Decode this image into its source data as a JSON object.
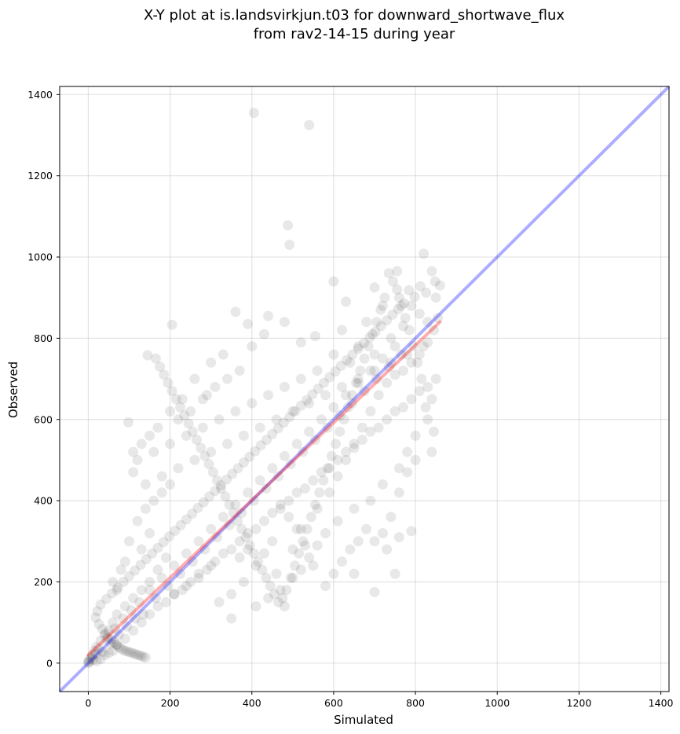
{
  "chart_data": {
    "type": "scatter",
    "title_line1": "X-Y plot at is.landsvirkjun.t03 for downward_shortwave_flux",
    "title_line2": "from rav2-14-15 during year",
    "xlabel": "Simulated",
    "ylabel": "Observed",
    "xlim": [
      -70,
      1420
    ],
    "ylim": [
      -70,
      1420
    ],
    "xticks": [
      0,
      200,
      400,
      600,
      800,
      1000,
      1200,
      1400
    ],
    "yticks": [
      0,
      200,
      400,
      600,
      800,
      1000,
      1200,
      1400
    ],
    "grid": true,
    "colors": {
      "points": "#000000",
      "one_to_one": "#0000ff",
      "fit": "#ff0000"
    },
    "one_to_one_line": {
      "x": [
        -70,
        1420
      ],
      "y": [
        -70,
        1420
      ]
    },
    "fit_line": {
      "x": [
        0,
        860
      ],
      "y": [
        20,
        840
      ]
    },
    "points": [
      [
        405,
        1355
      ],
      [
        540,
        1325
      ],
      [
        488,
        1078
      ],
      [
        492,
        1030
      ],
      [
        145,
        758
      ],
      [
        205,
        833
      ],
      [
        98,
        593
      ],
      [
        820,
        1008
      ],
      [
        840,
        965
      ],
      [
        755,
        965
      ],
      [
        600,
        940
      ],
      [
        630,
        890
      ],
      [
        700,
        925
      ],
      [
        555,
        805
      ],
      [
        480,
        840
      ],
      [
        440,
        855
      ],
      [
        360,
        865
      ],
      [
        390,
        835
      ],
      [
        430,
        810
      ],
      [
        400,
        780
      ],
      [
        520,
        790
      ],
      [
        620,
        820
      ],
      [
        680,
        840
      ],
      [
        720,
        880
      ],
      [
        760,
        900
      ],
      [
        790,
        880
      ],
      [
        810,
        860
      ],
      [
        830,
        840
      ],
      [
        850,
        900
      ],
      [
        770,
        830
      ],
      [
        740,
        800
      ],
      [
        700,
        760
      ],
      [
        660,
        780
      ],
      [
        640,
        740
      ],
      [
        600,
        760
      ],
      [
        560,
        720
      ],
      [
        520,
        700
      ],
      [
        480,
        680
      ],
      [
        440,
        660
      ],
      [
        400,
        640
      ],
      [
        360,
        620
      ],
      [
        320,
        600
      ],
      [
        280,
        580
      ],
      [
        240,
        560
      ],
      [
        200,
        540
      ],
      [
        160,
        520
      ],
      [
        120,
        500
      ],
      [
        110,
        470
      ],
      [
        140,
        440
      ],
      [
        180,
        460
      ],
      [
        220,
        480
      ],
      [
        260,
        500
      ],
      [
        300,
        520
      ],
      [
        340,
        540
      ],
      [
        380,
        560
      ],
      [
        420,
        580
      ],
      [
        460,
        600
      ],
      [
        500,
        620
      ],
      [
        540,
        640
      ],
      [
        580,
        660
      ],
      [
        620,
        680
      ],
      [
        660,
        700
      ],
      [
        700,
        720
      ],
      [
        740,
        740
      ],
      [
        780,
        760
      ],
      [
        820,
        780
      ],
      [
        850,
        700
      ],
      [
        840,
        650
      ],
      [
        830,
        600
      ],
      [
        800,
        560
      ],
      [
        780,
        520
      ],
      [
        760,
        480
      ],
      [
        720,
        440
      ],
      [
        690,
        400
      ],
      [
        650,
        380
      ],
      [
        610,
        350
      ],
      [
        580,
        320
      ],
      [
        560,
        290
      ],
      [
        540,
        260
      ],
      [
        520,
        230
      ],
      [
        500,
        210
      ],
      [
        470,
        180
      ],
      [
        440,
        160
      ],
      [
        410,
        140
      ],
      [
        380,
        200
      ],
      [
        350,
        170
      ],
      [
        320,
        150
      ],
      [
        300,
        240
      ],
      [
        270,
        210
      ],
      [
        240,
        190
      ],
      [
        210,
        170
      ],
      [
        190,
        260
      ],
      [
        170,
        230
      ],
      [
        150,
        200
      ],
      [
        130,
        180
      ],
      [
        110,
        160
      ],
      [
        90,
        140
      ],
      [
        70,
        120
      ],
      [
        60,
        100
      ],
      [
        50,
        80
      ],
      [
        40,
        70
      ],
      [
        30,
        55
      ],
      [
        20,
        40
      ],
      [
        15,
        30
      ],
      [
        10,
        20
      ],
      [
        5,
        10
      ],
      [
        0,
        0
      ],
      [
        0,
        5
      ],
      [
        2,
        3
      ],
      [
        8,
        15
      ],
      [
        12,
        8
      ],
      [
        18,
        22
      ],
      [
        25,
        35
      ],
      [
        35,
        28
      ],
      [
        45,
        60
      ],
      [
        55,
        48
      ],
      [
        65,
        85
      ],
      [
        75,
        70
      ],
      [
        85,
        110
      ],
      [
        95,
        90
      ],
      [
        105,
        130
      ],
      [
        115,
        110
      ],
      [
        125,
        150
      ],
      [
        135,
        120
      ],
      [
        150,
        180
      ],
      [
        165,
        160
      ],
      [
        180,
        210
      ],
      [
        195,
        190
      ],
      [
        210,
        240
      ],
      [
        225,
        220
      ],
      [
        240,
        270
      ],
      [
        255,
        250
      ],
      [
        270,
        300
      ],
      [
        285,
        280
      ],
      [
        300,
        330
      ],
      [
        315,
        310
      ],
      [
        330,
        360
      ],
      [
        345,
        340
      ],
      [
        360,
        390
      ],
      [
        375,
        370
      ],
      [
        390,
        420
      ],
      [
        405,
        400
      ],
      [
        420,
        450
      ],
      [
        435,
        430
      ],
      [
        450,
        480
      ],
      [
        465,
        460
      ],
      [
        480,
        510
      ],
      [
        495,
        490
      ],
      [
        510,
        540
      ],
      [
        525,
        520
      ],
      [
        540,
        570
      ],
      [
        555,
        550
      ],
      [
        570,
        600
      ],
      [
        585,
        580
      ],
      [
        600,
        630
      ],
      [
        615,
        610
      ],
      [
        630,
        660
      ],
      [
        645,
        640
      ],
      [
        660,
        690
      ],
      [
        675,
        670
      ],
      [
        690,
        720
      ],
      [
        705,
        700
      ],
      [
        720,
        750
      ],
      [
        735,
        730
      ],
      [
        750,
        780
      ],
      [
        765,
        760
      ],
      [
        100,
        300
      ],
      [
        120,
        350
      ],
      [
        140,
        380
      ],
      [
        160,
        400
      ],
      [
        180,
        420
      ],
      [
        200,
        440
      ],
      [
        150,
        320
      ],
      [
        130,
        280
      ],
      [
        90,
        250
      ],
      [
        80,
        230
      ],
      [
        60,
        200
      ],
      [
        70,
        180
      ],
      [
        220,
        600
      ],
      [
        250,
        620
      ],
      [
        280,
        650
      ],
      [
        310,
        680
      ],
      [
        340,
        700
      ],
      [
        370,
        720
      ],
      [
        260,
        700
      ],
      [
        300,
        740
      ],
      [
        330,
        760
      ],
      [
        290,
        660
      ],
      [
        230,
        650
      ],
      [
        200,
        620
      ],
      [
        170,
        580
      ],
      [
        150,
        560
      ],
      [
        130,
        540
      ],
      [
        110,
        520
      ],
      [
        700,
        300
      ],
      [
        720,
        320
      ],
      [
        740,
        360
      ],
      [
        760,
        420
      ],
      [
        780,
        470
      ],
      [
        800,
        500
      ],
      [
        680,
        330
      ],
      [
        660,
        300
      ],
      [
        640,
        280
      ],
      [
        620,
        250
      ],
      [
        600,
        220
      ],
      [
        650,
        220
      ],
      [
        700,
        175
      ],
      [
        750,
        220
      ],
      [
        760,
        310
      ],
      [
        790,
        325
      ],
      [
        730,
        280
      ],
      [
        580,
        190
      ],
      [
        550,
        240
      ],
      [
        530,
        290
      ],
      [
        510,
        330
      ],
      [
        490,
        360
      ],
      [
        470,
        390
      ],
      [
        450,
        300
      ],
      [
        430,
        270
      ],
      [
        410,
        240
      ],
      [
        390,
        280
      ],
      [
        370,
        260
      ],
      [
        350,
        110
      ],
      [
        480,
        140
      ],
      [
        460,
        220
      ],
      [
        500,
        280
      ],
      [
        520,
        330
      ],
      [
        560,
        380
      ],
      [
        590,
        420
      ],
      [
        610,
        460
      ],
      [
        630,
        500
      ],
      [
        650,
        540
      ],
      [
        670,
        580
      ],
      [
        690,
        620
      ],
      [
        710,
        660
      ],
      [
        730,
        690
      ],
      [
        750,
        710
      ],
      [
        770,
        720
      ],
      [
        790,
        740
      ],
      [
        810,
        760
      ],
      [
        830,
        790
      ],
      [
        845,
        820
      ],
      [
        855,
        850
      ],
      [
        860,
        930
      ],
      [
        848,
        940
      ],
      [
        826,
        912
      ],
      [
        812,
        928
      ],
      [
        798,
        902
      ],
      [
        784,
        918
      ],
      [
        772,
        886
      ],
      [
        758,
        872
      ],
      [
        744,
        858
      ],
      [
        730,
        844
      ],
      [
        716,
        830
      ],
      [
        702,
        816
      ],
      [
        688,
        802
      ],
      [
        674,
        788
      ],
      [
        660,
        774
      ],
      [
        646,
        760
      ],
      [
        632,
        746
      ],
      [
        618,
        732
      ],
      [
        604,
        718
      ],
      [
        590,
        704
      ],
      [
        576,
        690
      ],
      [
        562,
        676
      ],
      [
        548,
        662
      ],
      [
        534,
        648
      ],
      [
        520,
        634
      ],
      [
        506,
        620
      ],
      [
        492,
        606
      ],
      [
        478,
        592
      ],
      [
        464,
        578
      ],
      [
        450,
        564
      ],
      [
        436,
        550
      ],
      [
        422,
        536
      ],
      [
        408,
        522
      ],
      [
        394,
        508
      ],
      [
        380,
        494
      ],
      [
        366,
        480
      ],
      [
        352,
        466
      ],
      [
        338,
        452
      ],
      [
        324,
        438
      ],
      [
        310,
        424
      ],
      [
        296,
        410
      ],
      [
        282,
        396
      ],
      [
        268,
        382
      ],
      [
        254,
        368
      ],
      [
        240,
        354
      ],
      [
        226,
        340
      ],
      [
        212,
        326
      ],
      [
        198,
        312
      ],
      [
        184,
        298
      ],
      [
        170,
        284
      ],
      [
        156,
        270
      ],
      [
        142,
        256
      ],
      [
        128,
        242
      ],
      [
        114,
        228
      ],
      [
        100,
        214
      ],
      [
        86,
        200
      ],
      [
        72,
        186
      ],
      [
        58,
        172
      ],
      [
        44,
        158
      ],
      [
        30,
        144
      ],
      [
        22,
        128
      ],
      [
        18,
        112
      ],
      [
        26,
        96
      ],
      [
        34,
        84
      ],
      [
        42,
        74
      ],
      [
        48,
        64
      ],
      [
        56,
        58
      ],
      [
        62,
        52
      ],
      [
        68,
        46
      ],
      [
        74,
        40
      ],
      [
        80,
        36
      ],
      [
        86,
        32
      ],
      [
        92,
        30
      ],
      [
        98,
        28
      ],
      [
        104,
        26
      ],
      [
        110,
        24
      ],
      [
        116,
        22
      ],
      [
        122,
        20
      ],
      [
        128,
        18
      ],
      [
        134,
        16
      ],
      [
        140,
        14
      ],
      [
        60,
        30
      ],
      [
        40,
        20
      ],
      [
        30,
        10
      ],
      [
        20,
        5
      ],
      [
        50,
        25
      ],
      [
        70,
        45
      ],
      [
        90,
        60
      ],
      [
        110,
        80
      ],
      [
        130,
        100
      ],
      [
        150,
        120
      ],
      [
        170,
        140
      ],
      [
        190,
        150
      ],
      [
        210,
        170
      ],
      [
        230,
        180
      ],
      [
        250,
        200
      ],
      [
        270,
        220
      ],
      [
        290,
        230
      ],
      [
        310,
        250
      ],
      [
        330,
        270
      ],
      [
        350,
        280
      ],
      [
        370,
        300
      ],
      [
        390,
        320
      ],
      [
        410,
        330
      ],
      [
        430,
        350
      ],
      [
        450,
        370
      ],
      [
        470,
        380
      ],
      [
        490,
        400
      ],
      [
        510,
        420
      ],
      [
        530,
        430
      ],
      [
        550,
        450
      ],
      [
        570,
        470
      ],
      [
        590,
        480
      ],
      [
        610,
        500
      ],
      [
        630,
        520
      ],
      [
        650,
        530
      ],
      [
        670,
        550
      ],
      [
        690,
        570
      ],
      [
        710,
        580
      ],
      [
        730,
        600
      ],
      [
        750,
        620
      ],
      [
        770,
        630
      ],
      [
        790,
        650
      ],
      [
        810,
        670
      ],
      [
        830,
        680
      ],
      [
        845,
        570
      ],
      [
        840,
        520
      ],
      [
        825,
        630
      ],
      [
        815,
        700
      ],
      [
        805,
        740
      ],
      [
        795,
        780
      ],
      [
        785,
        820
      ],
      [
        775,
        850
      ],
      [
        765,
        880
      ],
      [
        755,
        920
      ],
      [
        745,
        940
      ],
      [
        735,
        960
      ],
      [
        725,
        900
      ],
      [
        715,
        870
      ],
      [
        705,
        840
      ],
      [
        695,
        810
      ],
      [
        685,
        780
      ],
      [
        675,
        750
      ],
      [
        665,
        720
      ],
      [
        655,
        690
      ],
      [
        645,
        660
      ],
      [
        635,
        630
      ],
      [
        625,
        600
      ],
      [
        615,
        570
      ],
      [
        605,
        540
      ],
      [
        595,
        510
      ],
      [
        585,
        480
      ],
      [
        575,
        450
      ],
      [
        565,
        420
      ],
      [
        555,
        390
      ],
      [
        545,
        360
      ],
      [
        535,
        330
      ],
      [
        525,
        300
      ],
      [
        515,
        270
      ],
      [
        505,
        240
      ],
      [
        495,
        210
      ],
      [
        485,
        180
      ],
      [
        475,
        160
      ],
      [
        465,
        150
      ],
      [
        455,
        170
      ],
      [
        445,
        190
      ],
      [
        435,
        210
      ],
      [
        425,
        230
      ],
      [
        415,
        250
      ],
      [
        405,
        270
      ],
      [
        395,
        290
      ],
      [
        385,
        310
      ],
      [
        375,
        330
      ],
      [
        365,
        350
      ],
      [
        355,
        370
      ],
      [
        345,
        390
      ],
      [
        335,
        410
      ],
      [
        325,
        430
      ],
      [
        315,
        450
      ],
      [
        305,
        470
      ],
      [
        295,
        490
      ],
      [
        285,
        510
      ],
      [
        275,
        530
      ],
      [
        265,
        550
      ],
      [
        255,
        570
      ],
      [
        245,
        590
      ],
      [
        235,
        610
      ],
      [
        225,
        630
      ],
      [
        215,
        650
      ],
      [
        205,
        670
      ],
      [
        195,
        690
      ],
      [
        185,
        710
      ],
      [
        175,
        730
      ],
      [
        165,
        750
      ]
    ]
  }
}
